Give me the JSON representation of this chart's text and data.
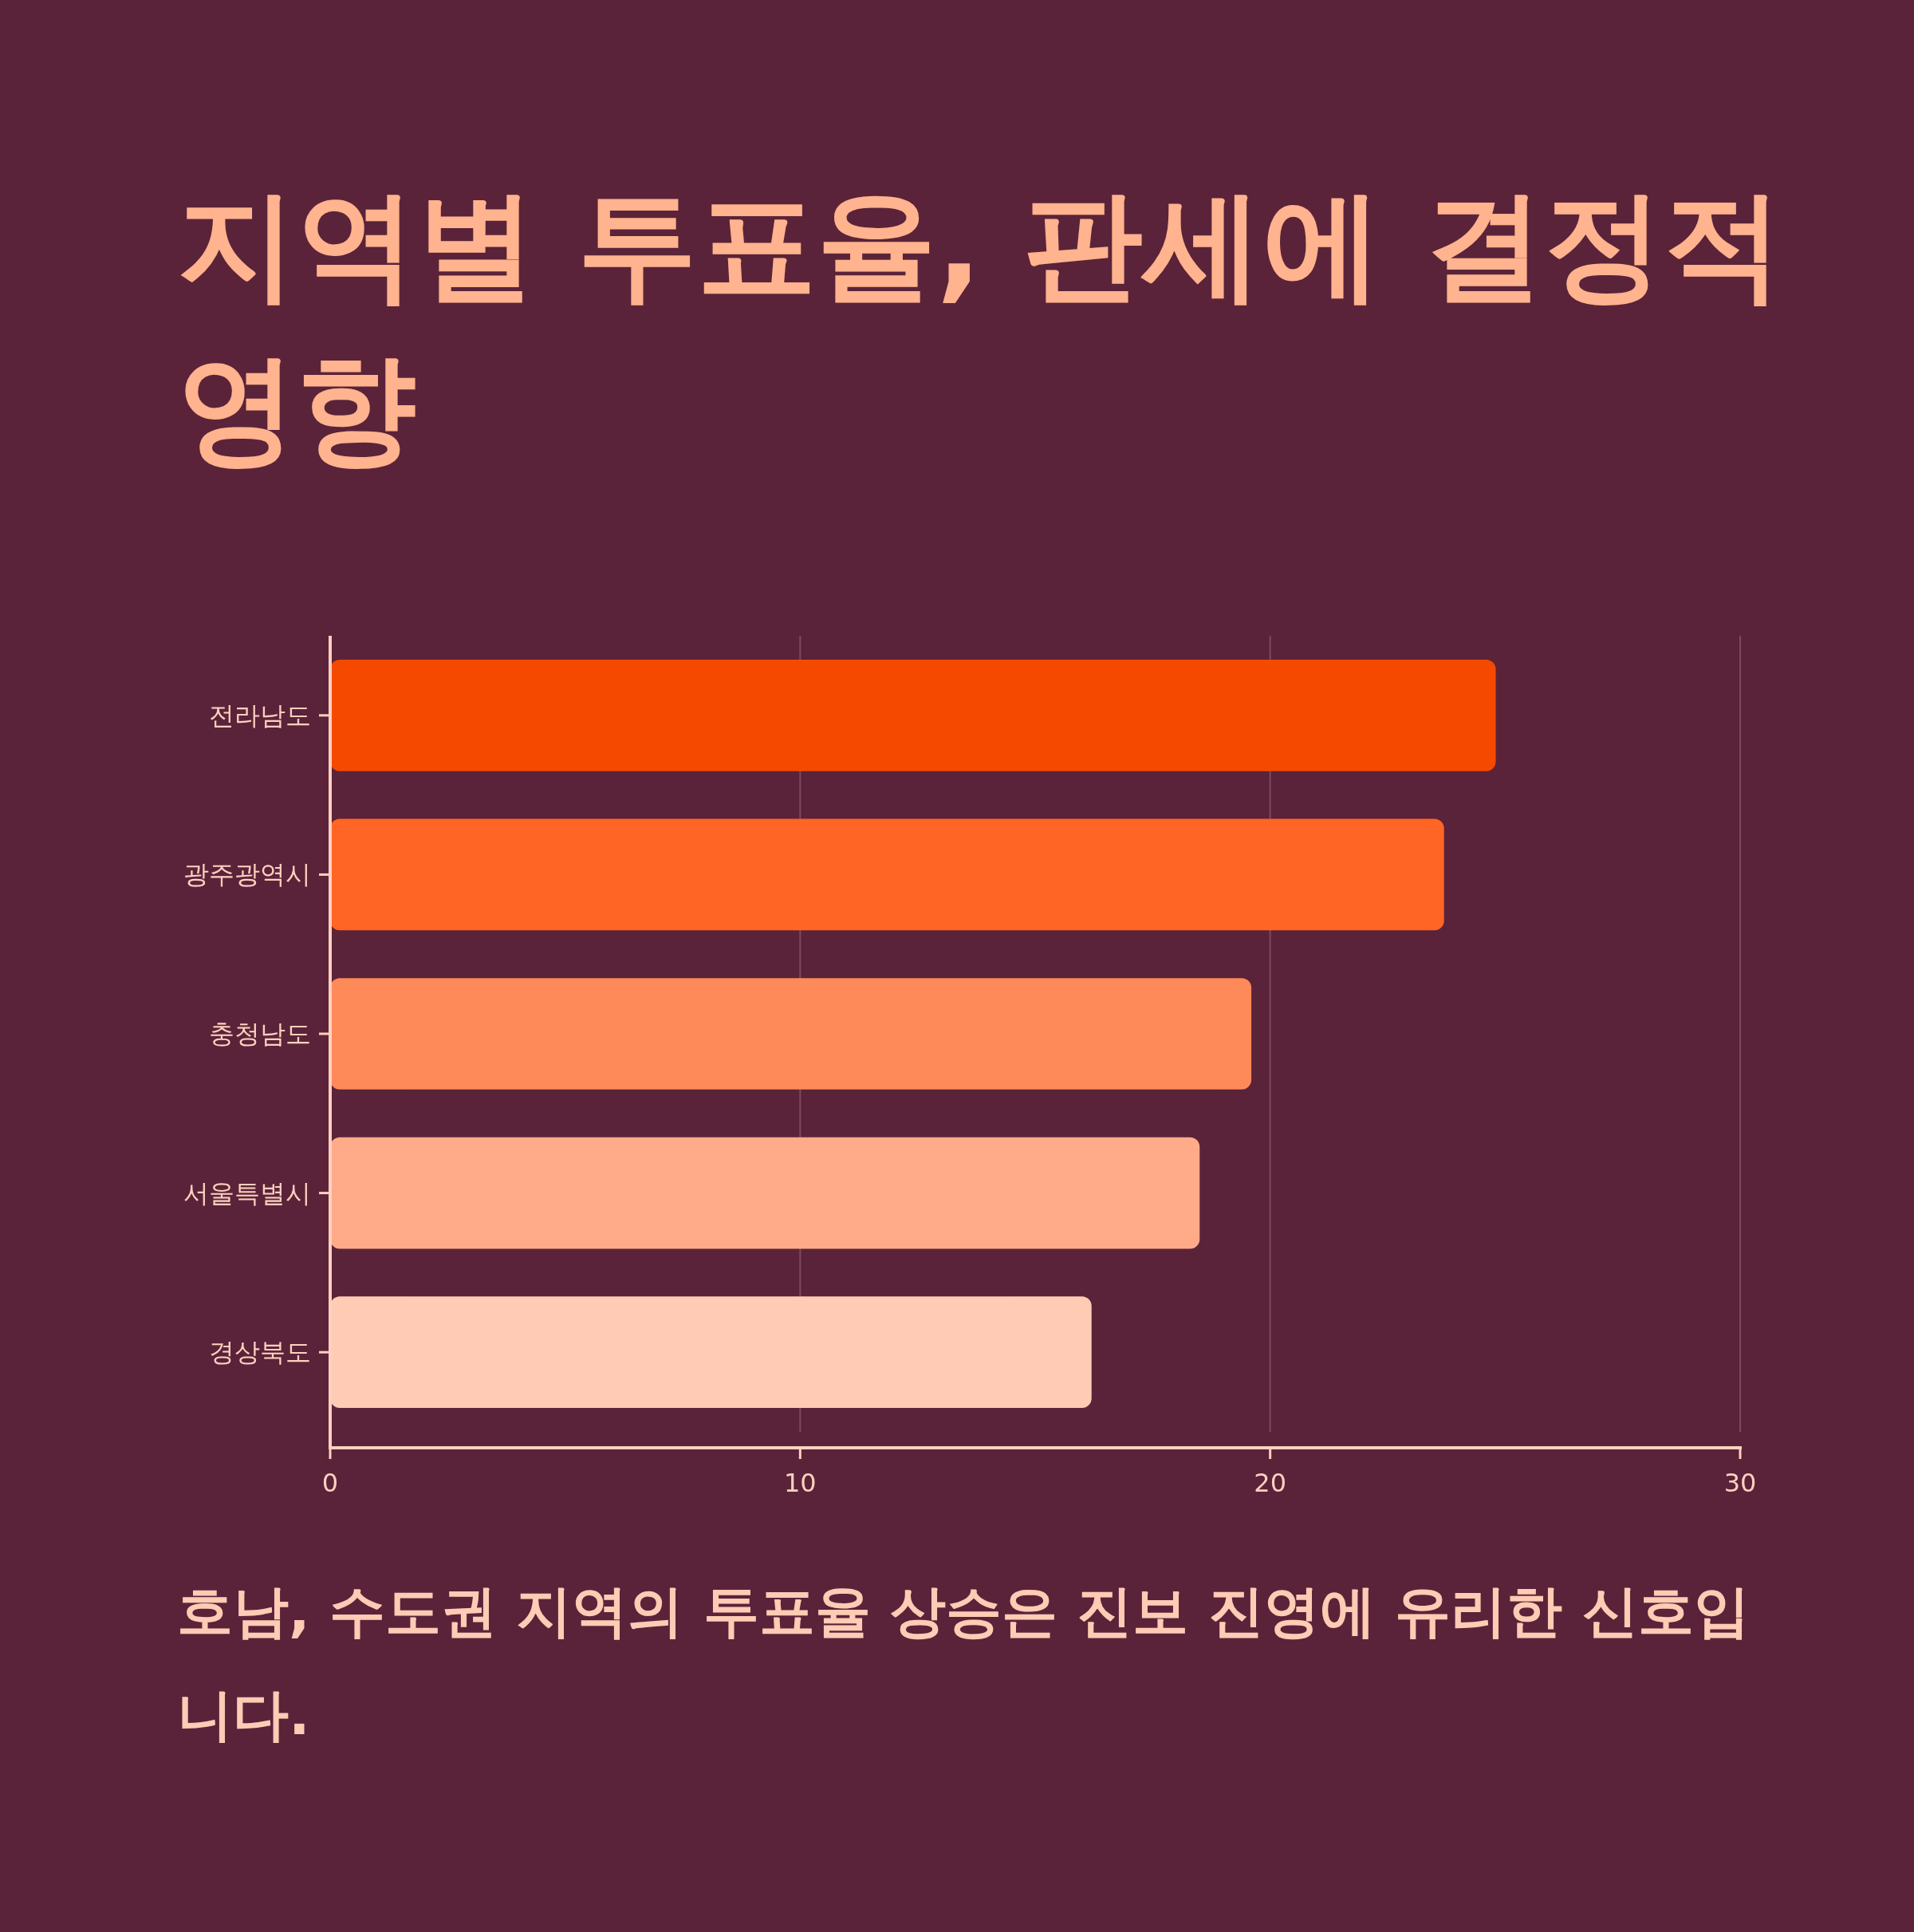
{
  "chart_data": {
    "type": "bar",
    "orientation": "horizontal",
    "title": "지역별 투표율, 판세에 결정적 영향",
    "categories": [
      "전라남도",
      "광주광역시",
      "충청남도",
      "서울특별시",
      "경상북도"
    ],
    "values": [
      24.8,
      23.7,
      19.6,
      18.5,
      16.2
    ],
    "colors": [
      "#f54900",
      "#ff6524",
      "#ff8a59",
      "#ffab8a",
      "#ffcbb5"
    ],
    "xlim": [
      0,
      30
    ],
    "xticks": [
      0,
      10,
      20,
      30
    ],
    "grid": "x",
    "annotations": [
      "호남, 수도권 지역의 투표율 상승은 진보 진영에 유리한 신호입니다."
    ]
  }
}
